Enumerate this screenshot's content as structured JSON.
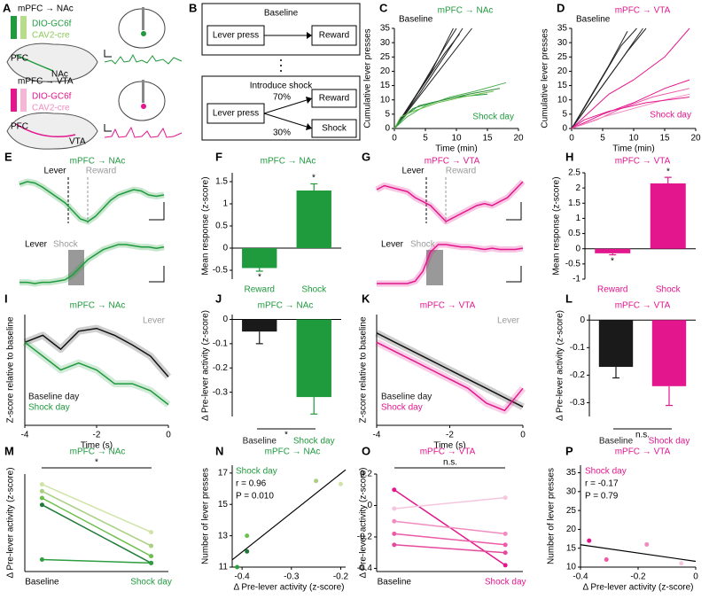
{
  "diagram_a": {
    "panel": "A",
    "top": {
      "title": "mPFC → NAc",
      "virus1": "DIO-GC6f",
      "virus2": "CAV2-cre",
      "region1": "PFC",
      "region2": "NAc"
    },
    "bottom": {
      "title": "mPFC → VTA",
      "virus1": "DIO-GC6f",
      "virus2": "CAV2-cre",
      "region1": "PFC",
      "region2": "VTA"
    }
  },
  "diagram_b": {
    "panel": "B",
    "baseline": {
      "title": "Baseline",
      "from": "Lever press",
      "to": "Reward"
    },
    "shock": {
      "title": "Introduce shock",
      "from": "Lever press",
      "p1": "70%",
      "to1": "Reward",
      "p2": "30%",
      "to2": "Shock"
    }
  },
  "chart_data": [
    {
      "panel": "C",
      "type": "line",
      "title": "mPFC → NAc",
      "color": "#1f9a3d",
      "xlabel": "Time (min)",
      "ylabel": "Cumulative lever presses",
      "xlim": [
        0,
        20
      ],
      "xticks": [
        0,
        5,
        10,
        15,
        20
      ],
      "ylim": [
        0,
        35
      ],
      "yticks": [
        0,
        5,
        10,
        15,
        20,
        25,
        30,
        35
      ],
      "annotations": [
        "Baseline",
        "Shock day"
      ],
      "series": [
        {
          "color": "#222222",
          "x": [
            0,
            2,
            5,
            8,
            10
          ],
          "values": [
            0,
            6,
            17,
            28,
            35
          ]
        },
        {
          "color": "#222222",
          "x": [
            0,
            3,
            6,
            9.5
          ],
          "values": [
            0,
            10,
            20,
            35
          ]
        },
        {
          "color": "#222222",
          "x": [
            0,
            4,
            8,
            11
          ],
          "values": [
            0,
            12,
            25,
            35
          ]
        },
        {
          "color": "#222222",
          "x": [
            0,
            5,
            10,
            12.5
          ],
          "values": [
            0,
            14,
            28,
            35
          ]
        },
        {
          "color": "#222222",
          "x": [
            0,
            4,
            8,
            10.5
          ],
          "values": [
            0,
            13,
            26,
            33
          ]
        },
        {
          "color": "#1f9a3d",
          "x": [
            0,
            1,
            3,
            6,
            10,
            15
          ],
          "values": [
            0,
            3,
            7,
            9,
            11,
            12
          ]
        },
        {
          "color": "#4caf50",
          "x": [
            0,
            2,
            5,
            9,
            13,
            18
          ],
          "values": [
            0,
            4,
            8,
            11,
            13,
            16
          ]
        },
        {
          "color": "#2e8b3a",
          "x": [
            0,
            2,
            4,
            8,
            12,
            17
          ],
          "values": [
            0,
            5,
            8,
            10,
            12,
            14
          ]
        },
        {
          "color": "#6cbf4c",
          "x": [
            0,
            1,
            3,
            7,
            11,
            16
          ],
          "values": [
            0,
            4,
            6,
            9,
            11,
            13
          ]
        }
      ]
    },
    {
      "panel": "D",
      "type": "line",
      "title": "mPFC → VTA",
      "color": "#e3168d",
      "xlabel": "Time (min)",
      "ylabel": "Cumulative lever presses",
      "xlim": [
        0,
        20
      ],
      "xticks": [
        0,
        5,
        10,
        15,
        20
      ],
      "ylim": [
        0,
        35
      ],
      "yticks": [
        0,
        5,
        10,
        15,
        20,
        25,
        30,
        35
      ],
      "annotations": [
        "Baseline",
        "Shock day"
      ],
      "series": [
        {
          "color": "#222222",
          "x": [
            0,
            2,
            5,
            8,
            10.5
          ],
          "values": [
            0,
            7,
            18,
            29,
            35
          ]
        },
        {
          "color": "#222222",
          "x": [
            0,
            3,
            6,
            9
          ],
          "values": [
            0,
            11,
            22,
            34
          ]
        },
        {
          "color": "#222222",
          "x": [
            0,
            4,
            8,
            11.5
          ],
          "values": [
            0,
            12,
            24,
            35
          ]
        },
        {
          "color": "#222222",
          "x": [
            0,
            5,
            9,
            12
          ],
          "values": [
            0,
            15,
            27,
            35
          ]
        },
        {
          "color": "#e3168d",
          "x": [
            0,
            3,
            6,
            10,
            15,
            19
          ],
          "values": [
            0,
            6,
            12,
            17,
            25,
            35
          ]
        },
        {
          "color": "#e3168d",
          "x": [
            0,
            5,
            10,
            15,
            19
          ],
          "values": [
            0,
            5,
            9,
            14,
            17
          ]
        },
        {
          "color": "#ec5aa8",
          "x": [
            0,
            4,
            8,
            13,
            19
          ],
          "values": [
            0,
            3,
            7,
            11,
            14
          ]
        },
        {
          "color": "#f08cc0",
          "x": [
            0,
            5,
            10,
            15,
            19
          ],
          "values": [
            0,
            4,
            7,
            10,
            12
          ]
        },
        {
          "color": "#e3168d",
          "x": [
            0,
            2,
            6,
            12,
            19
          ],
          "values": [
            0,
            3,
            6,
            9,
            11
          ]
        }
      ]
    },
    {
      "panel": "E",
      "type": "trace",
      "title": "mPFC → NAc",
      "color": "#1f9a3d",
      "annotations": [
        "Lever",
        "Reward",
        "Lever",
        "Shock"
      ],
      "series": [
        {
          "color": "#1f9a3d",
          "values": [
            0.8,
            0.9,
            0.85,
            0.7,
            0.5,
            0.3,
            0.1,
            -0.2,
            -0.5,
            -0.6,
            -0.4,
            -0.1,
            0.2,
            0.4,
            0.5,
            0.6,
            0.55,
            0.4,
            0.35,
            0.4
          ]
        },
        {
          "color": "#1f9a3d",
          "values": [
            0,
            0,
            -0.05,
            0,
            0,
            0.05,
            0.1,
            0.3,
            0.6,
            0.9,
            1.1,
            1.3,
            1.4,
            1.5,
            1.5,
            1.45,
            1.4,
            1.4,
            1.35,
            1.4
          ]
        }
      ]
    },
    {
      "panel": "F",
      "type": "bar",
      "title": "mPFC → NAc",
      "color": "#1f9a3d",
      "ylabel": "Mean response (z-score)",
      "categories": [
        "Reward",
        "Shock"
      ],
      "values": [
        -0.45,
        1.3
      ],
      "errors": [
        0.07,
        0.15
      ],
      "colors": [
        "#1f9a3d",
        "#1f9a3d"
      ],
      "ylim": [
        -0.7,
        1.7
      ],
      "yticks": [
        -0.5,
        0,
        0.5,
        1,
        1.5
      ],
      "annotations": [
        "*",
        "*"
      ]
    },
    {
      "panel": "G",
      "type": "trace",
      "title": "mPFC → VTA",
      "color": "#e3168d",
      "annotations": [
        "Lever",
        "Reward",
        "Lever",
        "Shock"
      ],
      "series": [
        {
          "color": "#e3168d",
          "values": [
            0.5,
            0.6,
            0.55,
            0.5,
            0.45,
            0.3,
            0.2,
            0.1,
            -0.1,
            -0.3,
            -0.2,
            -0.1,
            0,
            0.1,
            0.15,
            0.1,
            0.2,
            0.3,
            0.5,
            0.7
          ]
        },
        {
          "color": "#e3168d",
          "values": [
            0,
            0,
            0,
            0,
            0,
            0.1,
            0.5,
            1.3,
            1.6,
            1.6,
            1.55,
            1.5,
            1.5,
            1.45,
            1.4,
            1.45,
            1.4,
            1.4,
            1.4,
            1.45
          ]
        }
      ]
    },
    {
      "panel": "H",
      "type": "bar",
      "title": "mPFC → VTA",
      "color": "#e3168d",
      "ylabel": "Mean response (z-score)",
      "categories": [
        "Reward",
        "Shock"
      ],
      "values": [
        -0.15,
        2.15
      ],
      "errors": [
        0.05,
        0.2
      ],
      "colors": [
        "#e3168d",
        "#e3168d"
      ],
      "ylim": [
        -1,
        2.5
      ],
      "yticks": [
        -1,
        -0.5,
        0,
        0.5,
        1,
        1.5,
        2,
        2.5
      ],
      "annotations": [
        "*",
        "*"
      ]
    },
    {
      "panel": "I",
      "type": "line",
      "title": "mPFC → NAc",
      "color": "#1f9a3d",
      "xlabel": "Time (s)",
      "ylabel": "Z-score relative to baseline",
      "xlim": [
        -4,
        0
      ],
      "xticks": [
        -4,
        -2,
        0
      ],
      "ylim": [
        -0.6,
        0.2
      ],
      "band": true,
      "legend": "lower left",
      "annotations": [
        "Lever"
      ],
      "x": [
        -4,
        -3.5,
        -3,
        -2.5,
        -2,
        -1.5,
        -1,
        -0.5,
        0
      ],
      "series": [
        {
          "name": "Baseline day",
          "color": "#111111",
          "values": [
            0,
            0.05,
            -0.05,
            0.08,
            0.1,
            0.05,
            -0.02,
            -0.1,
            -0.25
          ]
        },
        {
          "name": "Shock day",
          "color": "#1f9a3d",
          "values": [
            0,
            -0.1,
            -0.2,
            -0.15,
            -0.2,
            -0.3,
            -0.3,
            -0.35,
            -0.45
          ]
        }
      ]
    },
    {
      "panel": "J",
      "type": "bar",
      "title": "mPFC → NAc",
      "color": "#1f9a3d",
      "ylabel": "Δ Pre-lever activity (z-score)",
      "categories": [
        "Baseline",
        "Shock day"
      ],
      "values": [
        -0.05,
        -0.32
      ],
      "errors": [
        0.05,
        0.07
      ],
      "colors": [
        "#1a1a1a",
        "#1f9a3d"
      ],
      "ylim": [
        -0.4,
        0.02
      ],
      "yticks": [
        0,
        -0.1,
        -0.2,
        -0.3
      ],
      "annotations": [
        "*"
      ]
    },
    {
      "panel": "K",
      "type": "line",
      "title": "mPFC → VTA",
      "color": "#e3168d",
      "xlabel": "Time (s)",
      "ylabel": "Z-score relative to baseline",
      "xlim": [
        -4,
        0
      ],
      "xticks": [
        -4,
        -2,
        0
      ],
      "ylim": [
        -0.4,
        0.2
      ],
      "band": true,
      "legend": "lower left",
      "annotations": [
        "Lever"
      ],
      "x": [
        -4,
        -3.5,
        -3,
        -2.5,
        -2,
        -1.5,
        -1,
        -0.5,
        0
      ],
      "series": [
        {
          "name": "Baseline day",
          "color": "#111111",
          "values": [
            0.1,
            0.05,
            0,
            -0.05,
            -0.1,
            -0.15,
            -0.2,
            -0.25,
            -0.3
          ]
        },
        {
          "name": "Shock day",
          "color": "#e3168d",
          "values": [
            0.05,
            0,
            -0.05,
            -0.1,
            -0.15,
            -0.2,
            -0.28,
            -0.32,
            -0.2
          ]
        }
      ]
    },
    {
      "panel": "L",
      "type": "bar",
      "title": "mPFC → VTA",
      "color": "#e3168d",
      "ylabel": "Δ Pre-lever activity (z-score)",
      "categories": [
        "Baseline",
        "Shock day"
      ],
      "values": [
        -0.17,
        -0.24
      ],
      "errors": [
        0.04,
        0.07
      ],
      "colors": [
        "#1a1a1a",
        "#e3168d"
      ],
      "ylim": [
        -0.35,
        0.02
      ],
      "yticks": [
        0,
        -0.1,
        -0.2,
        -0.3
      ],
      "annotations": [
        "n.s."
      ]
    },
    {
      "panel": "M",
      "type": "paired",
      "title": "mPFC → NAc",
      "color": "#1f9a3d",
      "ylabel": "Δ Pre-lever activity (z-score)",
      "categories": [
        "Baseline",
        "Shock day"
      ],
      "ylim": [
        -0.35,
        0.22
      ],
      "annotations": [
        "*"
      ],
      "series": [
        {
          "color": "#cfe4a6",
          "values": [
            0.16,
            -0.12
          ]
        },
        {
          "color": "#a8d080",
          "values": [
            0.12,
            -0.2
          ]
        },
        {
          "color": "#6cbf4c",
          "values": [
            0.08,
            -0.26
          ]
        },
        {
          "color": "#1f7a3a",
          "values": [
            0.04,
            -0.3
          ]
        },
        {
          "color": "#2e9e40",
          "values": [
            -0.28,
            -0.3
          ]
        }
      ]
    },
    {
      "panel": "N",
      "type": "scatter",
      "title": "mPFC → NAc",
      "color": "#1f9a3d",
      "xlabel": "Δ Pre-lever activity (z-score)",
      "ylabel": "Number of lever presses",
      "xlim": [
        -0.42,
        -0.19
      ],
      "xticks": [
        -0.4,
        -0.3,
        -0.2
      ],
      "ylim": [
        11,
        17.5
      ],
      "yticks": [
        11,
        13,
        15,
        17
      ],
      "annotations": [
        "Shock day",
        "r = 0.96",
        "P = 0.010"
      ],
      "fit": true,
      "x": [
        -0.41,
        -0.39,
        -0.39,
        -0.25,
        -0.2
      ],
      "values": [
        11,
        12,
        13,
        16.5,
        16.3
      ],
      "colors": [
        "#2e9e40",
        "#1f7a3a",
        "#6cbf4c",
        "#a8d080",
        "#cfe4a6"
      ]
    },
    {
      "panel": "O",
      "type": "paired",
      "title": "mPFC → VTA",
      "color": "#e3168d",
      "ylabel": "Δ Pre-lever activity (z-score)",
      "categories": [
        "Baseline",
        "Shock day"
      ],
      "ylim": [
        -0.42,
        0.2
      ],
      "yticks": [
        -0.4,
        -0.2,
        0,
        0.2
      ],
      "annotations": [
        "n.s."
      ],
      "series": [
        {
          "color": "#e3168d",
          "values": [
            0.1,
            -0.38
          ]
        },
        {
          "color": "#f6c6de",
          "values": [
            -0.02,
            0.05
          ]
        },
        {
          "color": "#f08cc0",
          "values": [
            -0.1,
            -0.18
          ]
        },
        {
          "color": "#ec5aa8",
          "values": [
            -0.18,
            -0.25
          ]
        },
        {
          "color": "#e44a9c",
          "values": [
            -0.25,
            -0.3
          ]
        }
      ]
    },
    {
      "panel": "P",
      "type": "scatter",
      "title": "mPFC → VTA",
      "color": "#e3168d",
      "xlabel": "Δ Pre-lever activity (z-score)",
      "ylabel": "Number of lever presses",
      "xlim": [
        -0.4,
        0
      ],
      "xticks": [
        -0.4,
        -0.2,
        0
      ],
      "ylim": [
        10,
        37
      ],
      "yticks": [
        10,
        15,
        20,
        25,
        30,
        35
      ],
      "annotations": [
        "Shock day",
        "r = -0.17",
        "P = 0.79"
      ],
      "fit": true,
      "x": [
        -0.37,
        -0.31,
        -0.17,
        -0.05
      ],
      "values": [
        17,
        12,
        16,
        11
      ],
      "colors": [
        "#e3168d",
        "#ec5aa8",
        "#f08cc0",
        "#f6c6de"
      ]
    }
  ]
}
